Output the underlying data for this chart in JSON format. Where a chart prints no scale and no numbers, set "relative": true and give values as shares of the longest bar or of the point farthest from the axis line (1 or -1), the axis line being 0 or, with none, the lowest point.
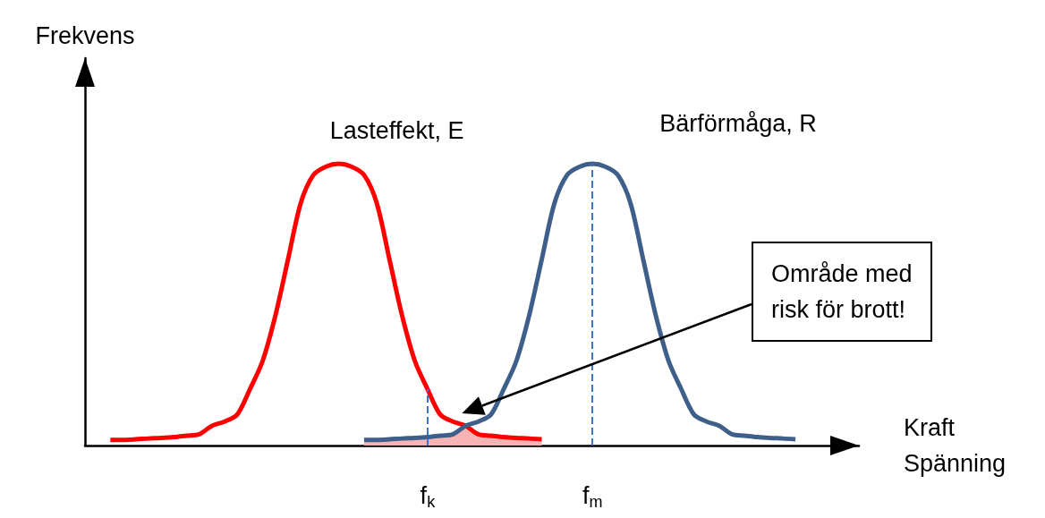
{
  "chart_data": {
    "type": "line",
    "relative": true,
    "ylabel": "Frekvens",
    "xlabel": "Kraft\nSpänning",
    "categories": [
      null,
      null,
      null,
      null,
      null,
      null,
      null,
      null,
      null,
      null,
      null,
      null,
      null,
      null,
      null,
      null,
      null,
      null,
      null,
      null,
      null,
      null,
      null,
      null,
      null,
      null,
      null,
      "f$_{k}$",
      null,
      null,
      null,
      null,
      null,
      null,
      null,
      null,
      null,
      null,
      null,
      null,
      "f$_{m}$",
      null,
      null,
      null,
      null,
      null,
      null,
      null,
      null,
      null,
      null,
      null,
      null,
      null,
      null,
      null,
      null,
      null,
      null,
      null,
      null,
      null
    ],
    "series": [
      {
        "type": "area",
        "color": "#f7b4b4",
        "values": [
          null,
          null,
          null,
          null,
          null,
          null,
          null,
          null,
          null,
          null,
          null,
          null,
          null,
          null,
          null,
          null,
          null,
          null,
          null,
          null,
          null,
          null,
          0.02,
          0.02,
          0.022,
          0.025,
          0.027,
          0.03,
          0.035,
          0.04,
          0.07,
          0.04,
          0.035,
          0.03,
          0.027,
          0.025,
          0.022,
          null,
          null,
          null,
          null,
          null,
          null,
          null,
          null,
          null,
          null,
          null,
          null,
          null,
          null,
          null,
          null,
          null,
          null,
          null,
          null,
          null,
          null,
          null,
          null,
          null
        ]
      },
      {
        "name": "Lasteffekt, E",
        "color": "#ff0000",
        "values": [
          null,
          null,
          0.02,
          0.02,
          0.022,
          0.025,
          0.027,
          0.03,
          0.035,
          0.04,
          0.07,
          0.085,
          0.11,
          0.2,
          0.3,
          0.46,
          0.66,
          0.86,
          0.96,
          0.99,
          1,
          0.99,
          0.96,
          0.86,
          0.66,
          0.46,
          0.3,
          0.2,
          0.11,
          0.085,
          0.07,
          0.04,
          0.035,
          0.03,
          0.027,
          0.025,
          0.022,
          null,
          null,
          null,
          null,
          null,
          null,
          null,
          null,
          null,
          null,
          null,
          null,
          null,
          null,
          null,
          null,
          null,
          null,
          null,
          null,
          null,
          null,
          null,
          null,
          null
        ]
      },
      {
        "name": "Bärförmåga, R",
        "color": "#3e5f8a",
        "values": [
          null,
          null,
          null,
          null,
          null,
          null,
          null,
          null,
          null,
          null,
          null,
          null,
          null,
          null,
          null,
          null,
          null,
          null,
          null,
          null,
          null,
          null,
          0.02,
          0.02,
          0.022,
          0.025,
          0.027,
          0.03,
          0.035,
          0.04,
          0.07,
          0.085,
          0.11,
          0.2,
          0.3,
          0.46,
          0.66,
          0.86,
          0.96,
          0.99,
          1,
          0.99,
          0.96,
          0.86,
          0.66,
          0.46,
          0.3,
          0.2,
          0.11,
          0.085,
          0.07,
          0.04,
          0.035,
          0.03,
          0.027,
          0.025,
          0.022,
          null,
          null,
          null,
          null,
          null
        ]
      }
    ],
    "ref_lines": [
      {
        "axis": "x",
        "value": "f$_{k}$",
        "color": "#4472c4",
        "line_style": "dashed"
      },
      {
        "axis": "x",
        "value": "f$_{m}$",
        "color": "#4472c4",
        "line_style": "dashed"
      }
    ],
    "annotations": [
      "Område med\nrisk för brott!"
    ],
    "legend": false,
    "grid": false,
    "marker": "none"
  }
}
